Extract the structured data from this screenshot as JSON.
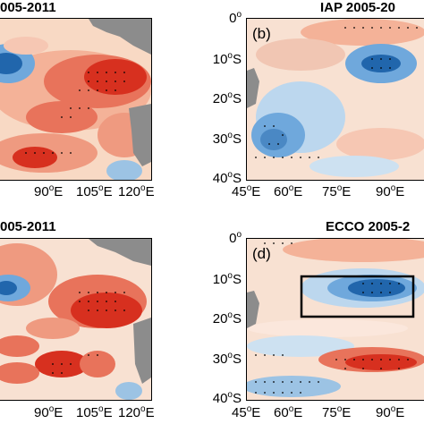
{
  "panels": {
    "a": {
      "title": "005-2011"
    },
    "b": {
      "title": "IAP 2005-20",
      "label": "(b)"
    },
    "c": {
      "title": "005-2011"
    },
    "d": {
      "title": "ECCO 2005-2",
      "label": "(d)"
    }
  },
  "left_x_ticks": [
    "90",
    "105",
    "120"
  ],
  "right_x_ticks": [
    "45",
    "60",
    "75",
    "90"
  ],
  "lat_ticks": [
    "0",
    "10",
    "20",
    "30",
    "40"
  ],
  "deg": "o",
  "east_suffix": "E",
  "south_suffix": "S",
  "colors": {
    "land": "#8c8c8c",
    "red": "#d7301f",
    "blue": "#2166ac",
    "box": "#000000"
  }
}
